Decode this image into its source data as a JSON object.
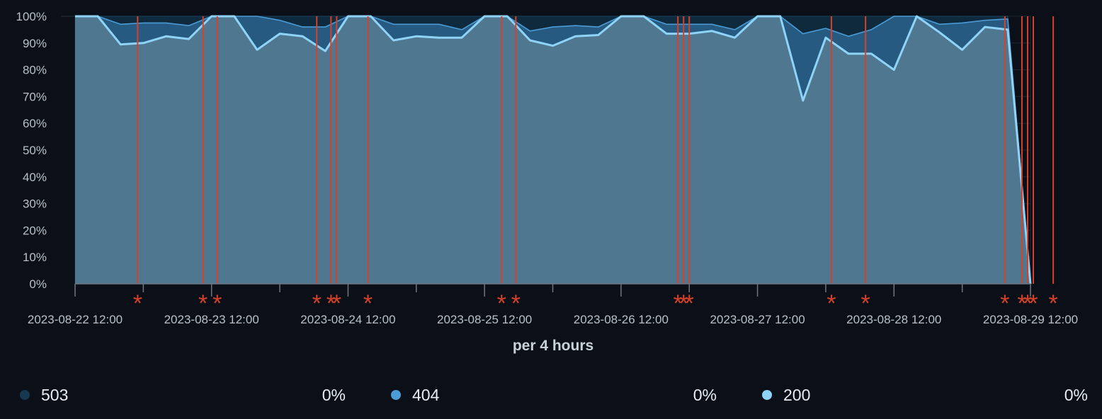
{
  "chart_data": {
    "type": "area",
    "stacked": true,
    "normalized": true,
    "xlabel": "per 4 hours",
    "ylabel": "",
    "ylim": [
      0,
      100
    ],
    "y_ticks": [
      "0%",
      "10%",
      "20%",
      "30%",
      "40%",
      "50%",
      "60%",
      "70%",
      "80%",
      "90%",
      "100%"
    ],
    "x_ticks": [
      "2023-08-22 12:00",
      "2023-08-23 12:00",
      "2023-08-24 12:00",
      "2023-08-25 12:00",
      "2023-08-26 12:00",
      "2023-08-27 12:00",
      "2023-08-28 12:00",
      "2023-08-29 12:00"
    ],
    "x": [
      "2023-08-22 12:00",
      "2023-08-22 16:00",
      "2023-08-22 20:00",
      "2023-08-23 00:00",
      "2023-08-23 04:00",
      "2023-08-23 08:00",
      "2023-08-23 12:00",
      "2023-08-23 16:00",
      "2023-08-23 20:00",
      "2023-08-24 00:00",
      "2023-08-24 04:00",
      "2023-08-24 08:00",
      "2023-08-24 12:00",
      "2023-08-24 16:00",
      "2023-08-24 20:00",
      "2023-08-25 00:00",
      "2023-08-25 04:00",
      "2023-08-25 08:00",
      "2023-08-25 12:00",
      "2023-08-25 16:00",
      "2023-08-25 20:00",
      "2023-08-26 00:00",
      "2023-08-26 04:00",
      "2023-08-26 08:00",
      "2023-08-26 12:00",
      "2023-08-26 16:00",
      "2023-08-26 20:00",
      "2023-08-27 00:00",
      "2023-08-27 04:00",
      "2023-08-27 08:00",
      "2023-08-27 12:00",
      "2023-08-27 16:00",
      "2023-08-27 20:00",
      "2023-08-28 00:00",
      "2023-08-28 04:00",
      "2023-08-28 08:00",
      "2023-08-28 12:00",
      "2023-08-28 16:00",
      "2023-08-28 20:00",
      "2023-08-29 00:00",
      "2023-08-29 04:00",
      "2023-08-29 08:00",
      "2023-08-29 12:00"
    ],
    "series": [
      {
        "name": "200",
        "values": [
          100,
          100,
          89.5,
          90,
          92.5,
          91.5,
          100,
          100,
          87.5,
          93.5,
          92.5,
          87,
          100,
          100,
          91,
          92.5,
          92,
          92,
          100,
          100,
          91,
          89,
          92.5,
          93,
          100,
          100,
          93.5,
          93.5,
          94.5,
          92,
          100,
          100,
          68.5,
          92,
          86,
          86,
          80,
          100,
          94,
          87.5,
          96,
          95,
          0
        ]
      },
      {
        "name": "404",
        "values": [
          0,
          0,
          7.5,
          7.5,
          5,
          5,
          0,
          0,
          12.5,
          5,
          3.5,
          9,
          0,
          0,
          6,
          4.5,
          5,
          3,
          0,
          0,
          3.5,
          7,
          4,
          3,
          0,
          0,
          3.5,
          3.5,
          2.5,
          3,
          0,
          0,
          25,
          3.5,
          6.5,
          9,
          20,
          0,
          3,
          10,
          2.5,
          4,
          0
        ]
      },
      {
        "name": "503",
        "values": [
          0,
          0,
          3,
          2.5,
          2.5,
          3.5,
          0,
          0,
          0,
          1.5,
          4,
          4,
          0,
          0,
          3,
          3,
          3,
          5,
          0,
          0,
          5.5,
          4,
          3.5,
          4,
          0,
          0,
          3,
          3,
          3,
          5,
          0,
          0,
          6.5,
          4.5,
          7.5,
          5,
          0,
          0,
          3,
          2.5,
          1.5,
          1,
          0
        ]
      }
    ],
    "series_colors": {
      "200": "#8fd3f8",
      "404": "#4a9bd6",
      "503": "#17384f"
    },
    "annotation_marker": "*",
    "annotation_color": "#d5412a",
    "annotations": [
      "2023-08-22 23:00",
      "2023-08-23 10:30",
      "2023-08-23 13:00",
      "2023-08-24 06:30",
      "2023-08-24 09:00",
      "2023-08-24 10:00",
      "2023-08-24 15:30",
      "2023-08-25 15:00",
      "2023-08-25 17:30",
      "2023-08-26 22:00",
      "2023-08-26 23:00",
      "2023-08-27 00:00",
      "2023-08-28 01:00",
      "2023-08-28 07:00",
      "2023-08-29 07:30",
      "2023-08-29 10:30",
      "2023-08-29 11:30",
      "2023-08-29 12:30",
      "2023-08-29 16:00"
    ],
    "grid": true,
    "legend_position": "bottom"
  },
  "legend": {
    "items": [
      {
        "name": "503",
        "value": "0%",
        "color": "#17384f"
      },
      {
        "name": "404",
        "value": "0%",
        "color": "#4a9bd6"
      },
      {
        "name": "200",
        "value": "0%",
        "color": "#8fd3f8"
      }
    ]
  }
}
